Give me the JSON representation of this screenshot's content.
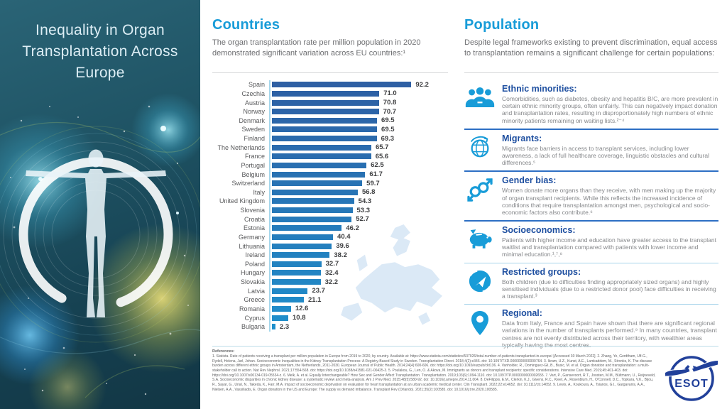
{
  "colors": {
    "accent_cyan": "#189cd8",
    "heading_blue": "#1e4fa0",
    "panel_teal_dark": "#123644",
    "esot_navy": "#21409a",
    "divider_strong": "#2d6fc4",
    "divider_light": "#a6d4ea"
  },
  "left_panel": {
    "title": "Inequality in Organ Transplantation Across Europe"
  },
  "countries_section": {
    "heading": "Countries",
    "subtitle": "The organ transplantation rate per million population in 2020 demonstrated significant variation across EU countries:¹"
  },
  "chart_data": {
    "type": "bar",
    "orientation": "horizontal",
    "title": "",
    "xlabel": "",
    "ylabel": "",
    "xlim": [
      0,
      100
    ],
    "grid": false,
    "legend": false,
    "value_labels": true,
    "bar_color_start": "#2e5fa3",
    "bar_color_end": "#1f8fcc",
    "categories": [
      "Spain",
      "Czechia",
      "Austria",
      "Norway",
      "Denmark",
      "Sweden",
      "Finland",
      "The Netherlands",
      "France",
      "Portugal",
      "Belgium",
      "Switzerland",
      "Italy",
      "United Kingdom",
      "Slovenia",
      "Croatia",
      "Estonia",
      "Germany",
      "Lithuania",
      "Ireland",
      "Poland",
      "Hungary",
      "Slovakia",
      "Latvia",
      "Greece",
      "Romania",
      "Cyprus",
      "Bulgaria"
    ],
    "values": [
      92.2,
      71.0,
      70.8,
      70.7,
      69.5,
      69.5,
      69.3,
      65.7,
      65.6,
      62.5,
      61.7,
      59.7,
      56.8,
      54.3,
      53.3,
      52.7,
      46.2,
      40.4,
      39.6,
      38.2,
      32.7,
      32.4,
      32.2,
      23.7,
      21.1,
      12.6,
      10.8,
      2.3
    ]
  },
  "population_section": {
    "heading": "Population",
    "subtitle": "Despite legal frameworks existing to prevent discrimination, equal access to transplantation remains a significant challenge for certain populations:",
    "items": [
      {
        "icon": "people-group-icon",
        "title": "Ethnic minorities:",
        "text": "Comorbidities, such as diabetes, obesity and hepatitis B/C, are more prevalent in certain ethnic minority groups, often unfairly. This can negatively impact donation and transplantation rates, resulting in disproportionately high numbers of ethnic minority patients remaining on waiting lists.²⁻⁴"
      },
      {
        "icon": "globe-migration-icon",
        "title": "Migrants:",
        "text": "Migrants face barriers in access to transplant services, including lower awareness, a lack of full healthcare coverage, linguistic obstacles and cultural differences.⁵"
      },
      {
        "icon": "gender-symbols-icon",
        "title": "Gender bias:",
        "text": "Women donate more organs than they receive, with men making up the majority of organ transplant recipients. While this reflects the increased incidence of conditions that require transplantation amongst men, psychological and socio-economic factors also contribute.⁶"
      },
      {
        "icon": "piggy-bank-icon",
        "title": "Socioeconomics:",
        "text": "Patients with higher income and education have greater access to the transplant waitlist and transplantation compared with patients with lower income and minimal education.¹,⁷,⁸"
      },
      {
        "icon": "protected-hands-icon",
        "title": "Restricted groups:",
        "text": "Both children (due to difficulties finding appropriately sized organs) and highly sensitised individuals (due to a restricted donor pool) face difficulties in receiving a transplant.³"
      },
      {
        "icon": "map-pin-icon",
        "title": "Regional:",
        "text": "Data from Italy, France and Spain have shown that there are significant regional variations in the number of transplants performed.⁹ In many countries, transplant centres are not evenly distributed across their territory, with wealthier areas typically having the most centres."
      }
    ]
  },
  "footer": {
    "references_label": "References:",
    "references_text": "1. Statista. Rate of patients receiving a transplant per million population in Europe from 2019 to 2020, by country. Available at: https://www.statista.com/statistics/537926/total-number-of-patients-transplanted-in-europe/ [Accessed 30 March 2022]. 2. Zhang, Ye, Gerdtham, Ulf-G., Rydell, Helena, Jarl, Johan. Socioeconomic Inequalities in the Kidney Transplantation Process: A Registry-Based Study in Sweden. Transplantation Direct. 2018;4(2):e346. doi: 10.1097/TXD.0000000000000764. 3. Ikram, U.Z., Kunst, A.E., Lamkaddem, M., Stronks, K. The disease burden across different ethnic groups in Amsterdam, the Netherlands, 2011-2030. European Journal of Public Health. 2014;24(4):600-606. doi: https://doi.org/10.1093/eurpub/ckt136. 4. Vanholder, R., Dominguez-Gil, B., Busic, M. et al. Organ donation and transplantation: a multi-stakeholder call to action. Nat Rev Nephrol. 2021;17:554-568. doi: https://doi.org/10.1038/s41581-021-00425-3. 5. Poulakou, G., Len, O. & Akova, M. Immigrants as donors and transplant recipients: specific considerations. Intensive Care Med. 2019;45:401-403. doi: https://doi.org/10.1007/s00134-019-05534-z. 6. Melk, A. et al. Equally Interchangeable? How Sex and Gender Affect Transplantation. Transplantation. 2019;103(6):1094-1110. doi: 10.1097/TP.0000000000002655. 7. Vart, P., Gansevoort, R.T., Joosten, M.M., Bültmann, U., Reijneveld, S.A. Socioeconomic disparities in chronic kidney disease: a systematic review and meta-analysis. Am J Prev Med. 2015;48(5):580-92. doi: 10.1016/j.amepre.2014.11.004. 8. DeFilippis, E.M., Clerkin, K.J., Givens, R.C., Kleet, A., Rosenblum, H., O'Connell, D.C., Topkara, V.K., Bijou, R., Sayar, G., Urial, N., Takeda, K., Farr, M.A. Impact of socioeconomic deprivation on evaluation for heart transplantation at an urban academic medical center. Clin Transplant. 2022;22:e14652. doi: 10.1111/ctr.14652. 9. Lewis, A., Koukoura, A., Tsianos, G.I., Gargavanis, A.A., Nielsen, A.A., Vassiliadis, E. Organ donation in the US and Europe: The supply vs demand imbalance. Transplant Rev (Orlando). 2021;35(2):100585. doi: 10.1016/j.trre.2020.100585.",
    "logo_text": "ESOT"
  }
}
